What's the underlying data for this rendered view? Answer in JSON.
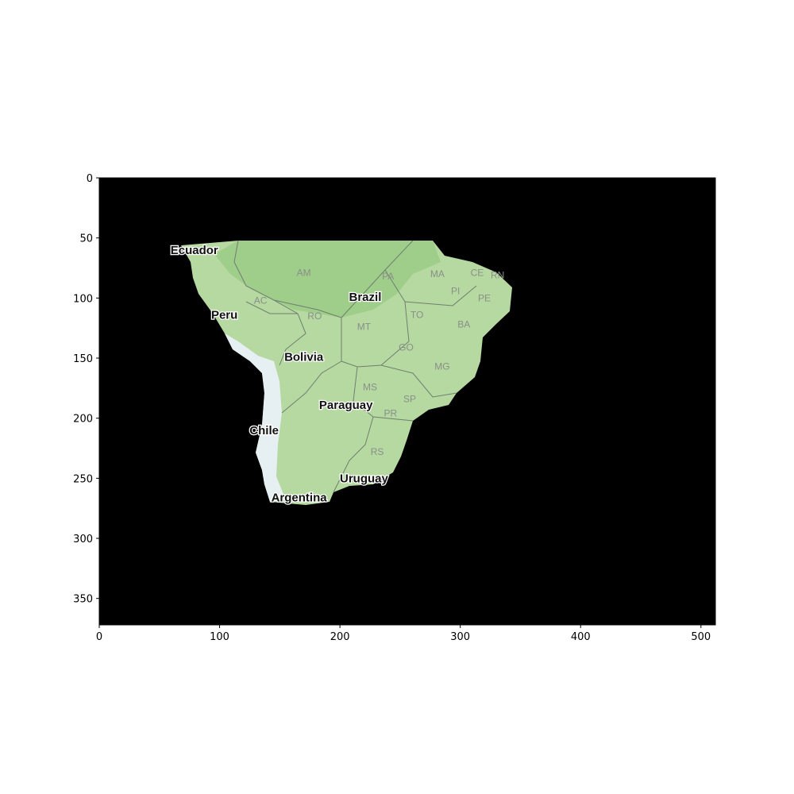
{
  "chart_data": {
    "type": "image",
    "xlim": [
      0,
      512
    ],
    "ylim": [
      372,
      0
    ],
    "x_ticks": [
      "0",
      "100",
      "200",
      "300",
      "400",
      "500"
    ],
    "y_ticks": [
      "0",
      "50",
      "100",
      "150",
      "200",
      "250",
      "300",
      "350"
    ],
    "grid": false,
    "background_color": "#000000",
    "land_color": "#b5d9a0",
    "forest_color": "#9fcd8a",
    "andes_color": "#e6eff2",
    "border_color": "#6f7f6f",
    "country_labels": [
      {
        "name": "Ecuador",
        "text": "Ecuador",
        "x": 79,
        "y": 60
      },
      {
        "name": "peru",
        "text": "Peru",
        "x": 104,
        "y": 114
      },
      {
        "name": "brazil",
        "text": "Brazil",
        "x": 221,
        "y": 99
      },
      {
        "name": "bolivia",
        "text": "Bolivia",
        "x": 170,
        "y": 149
      },
      {
        "name": "paraguay",
        "text": "Paraguay",
        "x": 205,
        "y": 189
      },
      {
        "name": "chile",
        "text": "Chile",
        "x": 137,
        "y": 210
      },
      {
        "name": "uruguay",
        "text": "Uruguay",
        "x": 220,
        "y": 250
      },
      {
        "name": "argentina",
        "text": "Argentina",
        "x": 166,
        "y": 266
      }
    ],
    "state_labels": [
      {
        "text": "AM",
        "x": 170,
        "y": 79
      },
      {
        "text": "PA",
        "x": 240,
        "y": 82
      },
      {
        "text": "MA",
        "x": 281,
        "y": 80
      },
      {
        "text": "CE",
        "x": 314,
        "y": 79
      },
      {
        "text": "RN",
        "x": 331,
        "y": 81
      },
      {
        "text": "PI",
        "x": 296,
        "y": 94
      },
      {
        "text": "PE",
        "x": 320,
        "y": 100
      },
      {
        "text": "AC",
        "x": 134,
        "y": 102
      },
      {
        "text": "RO",
        "x": 179,
        "y": 115
      },
      {
        "text": "TO",
        "x": 264,
        "y": 114
      },
      {
        "text": "BA",
        "x": 303,
        "y": 122
      },
      {
        "text": "MT",
        "x": 220,
        "y": 124
      },
      {
        "text": "GO",
        "x": 255,
        "y": 141
      },
      {
        "text": "MG",
        "x": 285,
        "y": 157
      },
      {
        "text": "MS",
        "x": 225,
        "y": 174
      },
      {
        "text": "SP",
        "x": 258,
        "y": 184
      },
      {
        "text": "PR",
        "x": 242,
        "y": 196
      },
      {
        "text": "RS",
        "x": 231,
        "y": 228
      }
    ]
  }
}
